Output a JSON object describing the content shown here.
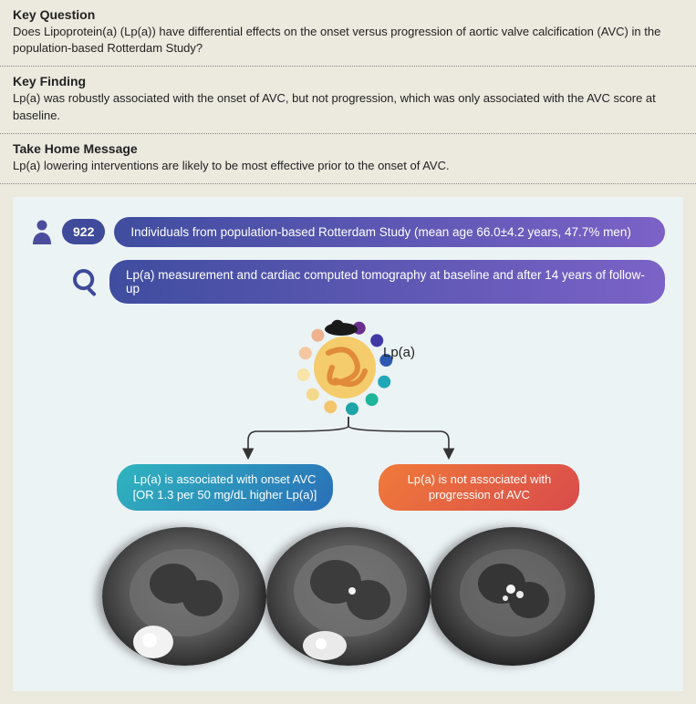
{
  "sections": {
    "key_question": {
      "heading": "Key Question",
      "text": "Does Lipoprotein(a) (Lp(a)) have differential effects on the onset versus progression of aortic valve calcification (AVC) in the population-based Rotterdam Study?"
    },
    "key_finding": {
      "heading": "Key Finding",
      "text": "Lp(a) was robustly associated with the onset of AVC, but not progression, which was only associated with the AVC score at baseline."
    },
    "take_home": {
      "heading": "Take Home Message",
      "text": "Lp(a) lowering interventions are likely to be most effective prior to the onset of AVC."
    }
  },
  "infographic": {
    "badge_number": "922",
    "population_text": "Individuals from population-based Rotterdam Study (mean age 66.0±4.2 years, 47.7% men)",
    "methods_text": "Lp(a) measurement and cardiac computed tomography at baseline and after 14 years of follow-up",
    "lp_label": "Lp(a)",
    "result_onset_line1": "Lp(a) is associated with onset AVC",
    "result_onset_line2": "[OR 1.3 per 50 mg/dL higher Lp(a)]",
    "result_prog_line1": "Lp(a) is not associated with",
    "result_prog_line2": "progression of AVC",
    "ring_colors": [
      "#1a1a1a",
      "#6a2f8c",
      "#4238a6",
      "#2d5ab0",
      "#1fa7b8",
      "#1fb59a",
      "#1fa4a7",
      "#f4c56a",
      "#f5d98a",
      "#f6e4a8",
      "#f3c8a0",
      "#efb18e"
    ],
    "particle_fill": "#f5cc6b",
    "particle_strand": "#e08a3a",
    "ct_grays": [
      "#2a2a2a",
      "#6b6b6b",
      "#a8a8a8",
      "#d8d8d8",
      "#f2f2f2"
    ]
  },
  "colors": {
    "panel_bg": "#ece9df",
    "info_bg": "#ecf3f5",
    "badge_bg": "#3f4a9a",
    "pill_grad_from": "#3f4d9f",
    "pill_grad_to": "#7b62c7",
    "onset_from": "#2fb5bf",
    "onset_to": "#2a6fb8",
    "prog_from": "#f07a3a",
    "prog_to": "#d94b4b"
  }
}
